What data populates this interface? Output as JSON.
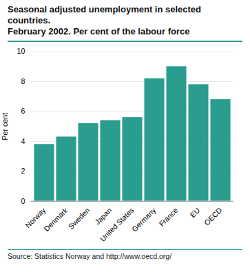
{
  "chart_data": {
    "type": "bar",
    "title": "Seasonal adjusted unemployment in selected countries.",
    "subtitle": "February 2002. Per cent of the labour force",
    "ylabel": "Per cent",
    "source": "Source: Statistics Norway and http://www.oecd.org/",
    "categories": [
      "Norway",
      "Denmark",
      "Sweden",
      "Japan",
      "United States",
      "Germany",
      "France",
      "EU",
      "OECD"
    ],
    "values": [
      3.8,
      4.3,
      5.2,
      5.4,
      5.6,
      8.2,
      9.0,
      7.8,
      6.8
    ],
    "color": "#2a9d8f",
    "ylim": [
      0,
      10
    ],
    "yticks": [
      0,
      2,
      4,
      6,
      8,
      10
    ],
    "grid": true
  }
}
